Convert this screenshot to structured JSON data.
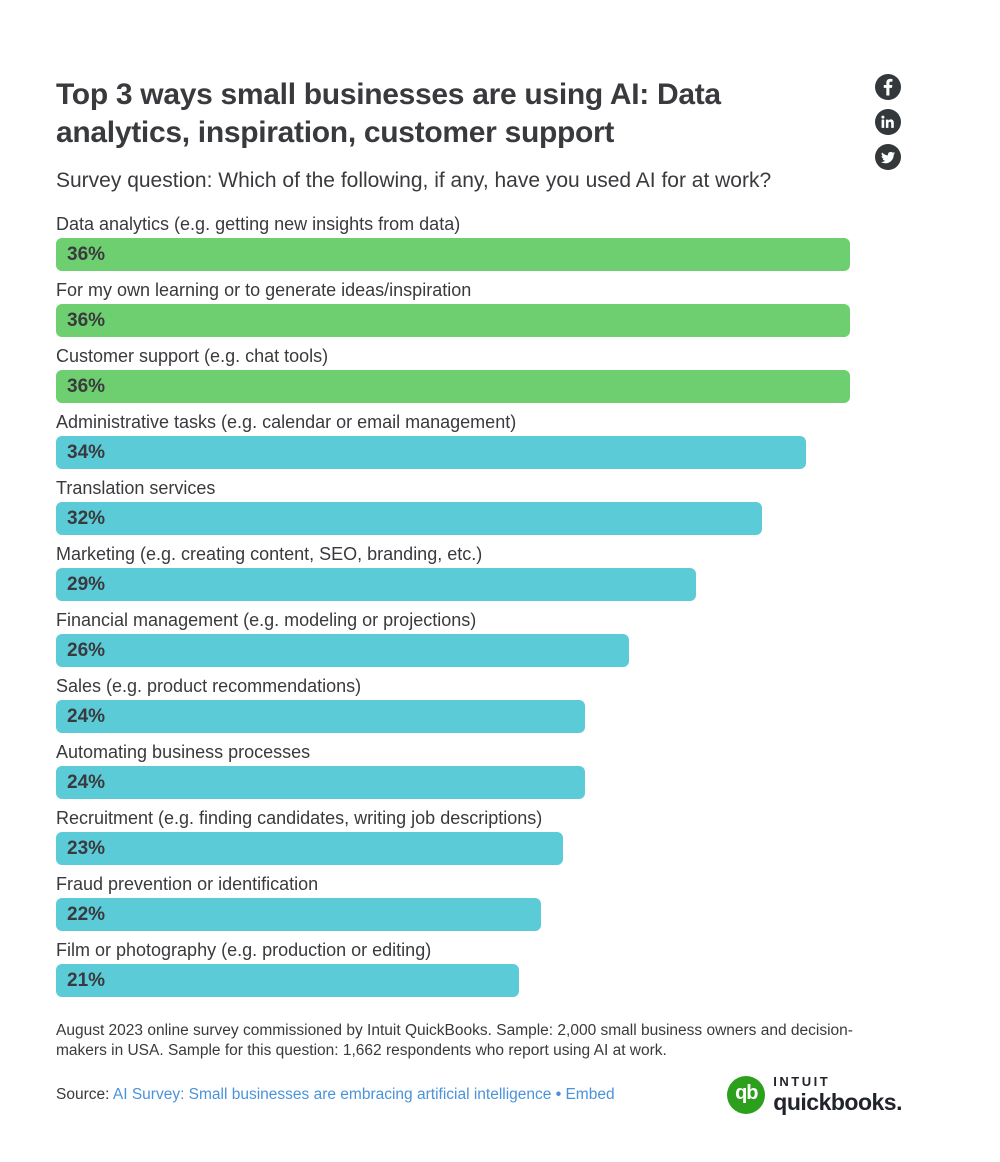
{
  "header": {
    "title": "Top 3 ways small businesses are using AI: Data analytics, inspiration, customer support",
    "subtitle": "Survey question: Which of the following, if any, have you used AI for at work?"
  },
  "social": {
    "circle_color": "#35383b",
    "icon_color": "#ffffff",
    "buttons": [
      "facebook",
      "linkedin",
      "twitter"
    ]
  },
  "chart_data": {
    "type": "bar",
    "orientation": "horizontal",
    "title": "Which of the following, if any, have you used AI for at work?",
    "categories": [
      "Data analytics (e.g. getting new insights from data)",
      "For my own learning or to generate ideas/inspiration",
      "Customer support (e.g. chat tools)",
      "Administrative tasks (e.g. calendar or email management)",
      "Translation services",
      "Marketing (e.g. creating content, SEO, branding, etc.)",
      "Financial management (e.g. modeling or projections)",
      "Sales (e.g. product recommendations)",
      "Automating business processes",
      "Recruitment (e.g. finding candidates, writing job descriptions)",
      "Fraud prevention or identification",
      "Film or photography (e.g. production or editing)"
    ],
    "values": [
      36,
      36,
      36,
      34,
      32,
      29,
      26,
      24,
      24,
      23,
      22,
      21
    ],
    "value_labels": [
      "36%",
      "36%",
      "36%",
      "34%",
      "32%",
      "29%",
      "26%",
      "24%",
      "24%",
      "23%",
      "22%",
      "21%"
    ],
    "bar_colors": [
      "#6ECF70",
      "#6ECF70",
      "#6ECF70",
      "#5BCBD8",
      "#5BCBD8",
      "#5BCBD8",
      "#5BCBD8",
      "#5BCBD8",
      "#5BCBD8",
      "#5BCBD8",
      "#5BCBD8",
      "#5BCBD8"
    ],
    "colors": {
      "top3_green": "#6ECF70",
      "other_teal": "#5BCBD8",
      "value_text": "#393a3d"
    },
    "scale": {
      "max_value": 36,
      "max_width_pct": 89.4
    },
    "xlabel": "",
    "ylabel": "",
    "grid": false,
    "legend": false
  },
  "footer": {
    "note": "August 2023 online survey commissioned by Intuit QuickBooks. Sample: 2,000 small business owners and decision-makers in USA. Sample for this question: 1,662 respondents who report using AI at work.",
    "source_label": "Source:",
    "source_link": "AI Survey: Small businesses are embracing artificial intelligence",
    "bullet": "•",
    "embed_label": "Embed",
    "link_color": "#4A93DB",
    "logo": {
      "monogram": "qb",
      "intuit": "INTUIT",
      "quickbooks": "quickbooks.",
      "green": "#2CA01C"
    }
  }
}
